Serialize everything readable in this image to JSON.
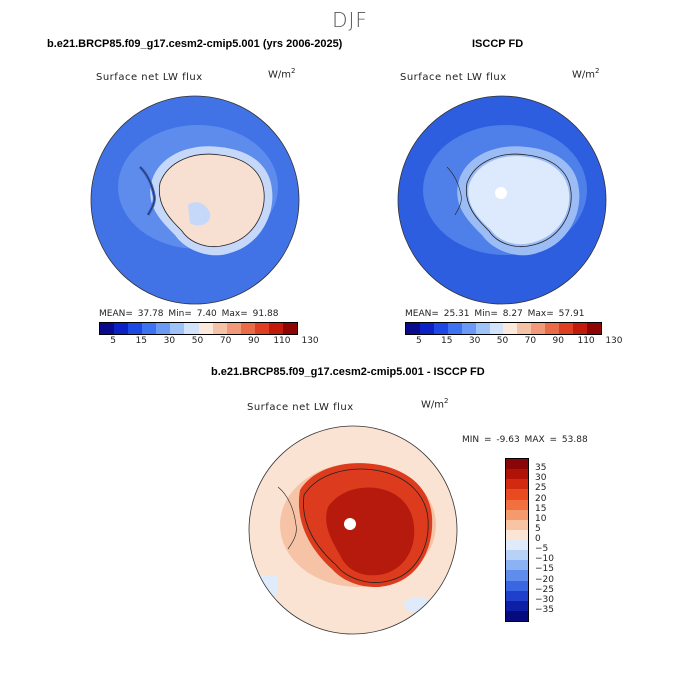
{
  "season": "DJF",
  "panels": {
    "model": {
      "title": "b.e21.BRCP85.f09_g17.cesm2-cmip5.001 (yrs 2006-2025)",
      "variable": "Surface net LW flux",
      "units_base": "W/m",
      "units_exp": "2",
      "stats": "MEAN=  37.78   Min=   7.40   Max=  91.88"
    },
    "obs": {
      "title": "ISCCP FD",
      "variable": "Surface net LW flux",
      "units_base": "W/m",
      "units_exp": "2",
      "stats": "MEAN=  25.31   Min=   8.27   Max=  57.91"
    },
    "diff": {
      "title": "b.e21.BRCP85.f09_g17.cesm2-cmip5.001 - ISCCP FD",
      "variable": "Surface net LW flux",
      "units_base": "W/m",
      "units_exp": "2",
      "stats": "MIN =  -9.63  MAX =  53.88"
    }
  },
  "colorbar_abs": {
    "labels": [
      "5",
      "15",
      "30",
      "50",
      "70",
      "90",
      "110",
      "130"
    ],
    "colors": [
      "#0a0a8c",
      "#0c22c4",
      "#1d48e6",
      "#3d72f0",
      "#6a9af5",
      "#9fc2f8",
      "#d2e4fb",
      "#fbe9dc",
      "#f6c2a7",
      "#f19978",
      "#ea6b48",
      "#de3f22",
      "#c41a0c",
      "#900404"
    ]
  },
  "colorbar_diff": {
    "labels": [
      "35",
      "30",
      "25",
      "20",
      "15",
      "10",
      "5",
      "0",
      "−5",
      "−10",
      "−15",
      "−20",
      "−25",
      "−30",
      "−35"
    ],
    "colors": [
      "#8a0606",
      "#b01208",
      "#d22a10",
      "#ea4a20",
      "#f27040",
      "#f59a6c",
      "#f8c4a4",
      "#fbe6d6",
      "#dfeafb",
      "#b8d2f7",
      "#8cb2f3",
      "#5e8ded",
      "#3a66e3",
      "#1f40cc",
      "#0d1fa4",
      "#070a7c"
    ]
  },
  "maps": {
    "model": {
      "ocean": "#4173e6",
      "ring": "#5d8cec",
      "land": "#f7dfd2",
      "land_edge": "#c6d8fa"
    },
    "obs": {
      "ocean": "#2e5ee0",
      "ring": "#4f7fe8",
      "land": "#dde9fc",
      "land_edge": "#9cbcf6"
    },
    "diff": {
      "ocean": "#fbe3d4",
      "ring": "#f6c3a6",
      "land": "#dc3b1e",
      "land_core": "#b61a0c"
    }
  }
}
